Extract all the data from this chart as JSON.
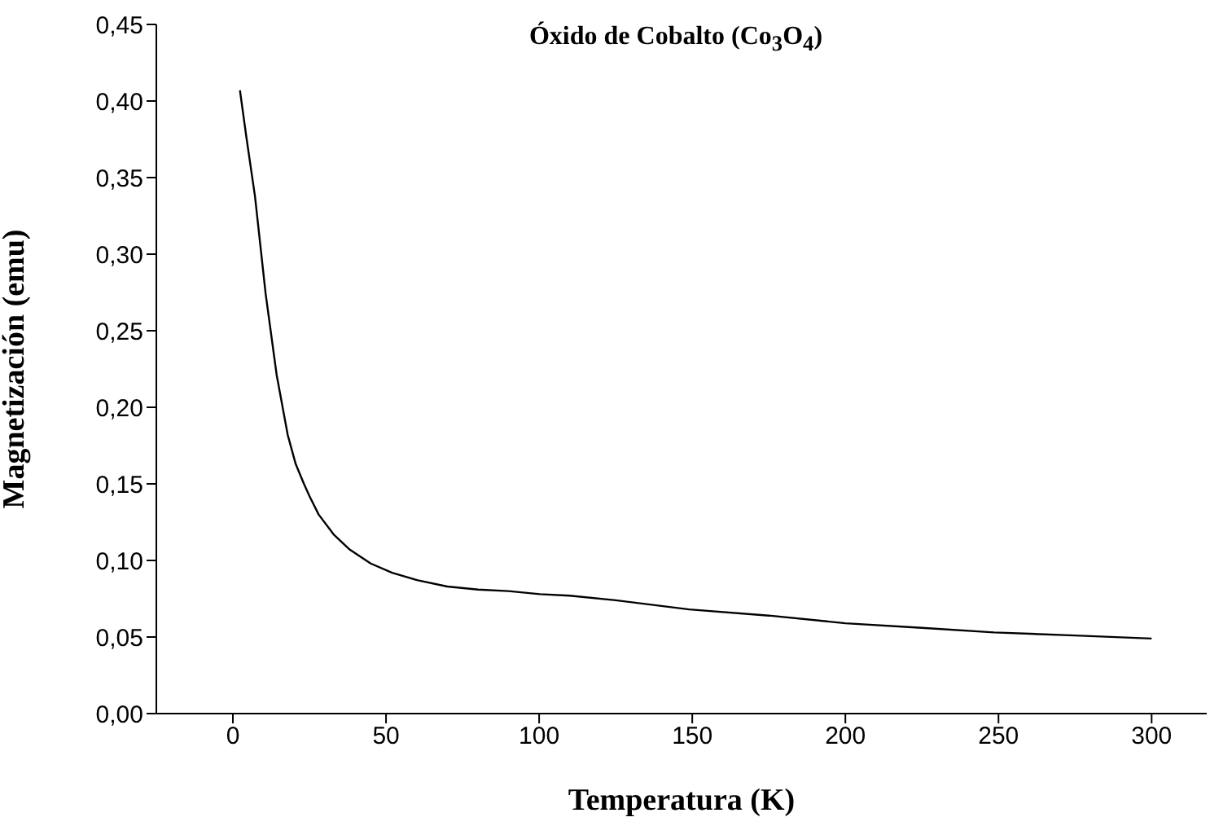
{
  "chart_data": {
    "type": "line",
    "title": "Óxido de Cobalto (Co$_{3}$O$_{4}$)",
    "xlabel": "Temperatura (K)",
    "ylabel": "Magnetización (emu)",
    "x": [
      2.3,
      4.5,
      7.2,
      10.7,
      14.3,
      17.9,
      20.5,
      23.2,
      25,
      28,
      32.9,
      38.2,
      45,
      52,
      60.4,
      70,
      80,
      90,
      100.2,
      110,
      125,
      149,
      175,
      200,
      225,
      248.6,
      275,
      300
    ],
    "series": [
      {
        "color": "#000000",
        "values": [
          0.407,
          0.375,
          0.338,
          0.274,
          0.221,
          0.182,
          0.163,
          0.15,
          0.142,
          0.13,
          0.117,
          0.107,
          0.098,
          0.092,
          0.087,
          0.083,
          0.081,
          0.08,
          0.078,
          0.077,
          0.074,
          0.068,
          0.064,
          0.059,
          0.056,
          0.053,
          0.051,
          0.049
        ]
      }
    ],
    "xlim": [
      -25,
      318
    ],
    "xticks": [
      0,
      50,
      100,
      150,
      200,
      250,
      300
    ],
    "ylim": [
      0,
      0.45
    ],
    "yticks": [
      {
        "value": 0,
        "label": "0,00"
      },
      {
        "value": 0.05,
        "label": "0,05"
      },
      {
        "value": 0.1,
        "label": "0,10"
      },
      {
        "value": 0.15,
        "label": "0,15"
      },
      {
        "value": 0.2,
        "label": "0,20"
      },
      {
        "value": 0.25,
        "label": "0,25"
      },
      {
        "value": 0.3,
        "label": "0,30"
      },
      {
        "value": 0.35,
        "label": "0,35"
      },
      {
        "value": 0.4,
        "label": "0,40"
      },
      {
        "value": 0.45,
        "label": "0,45"
      }
    ],
    "line_style": "solid"
  }
}
